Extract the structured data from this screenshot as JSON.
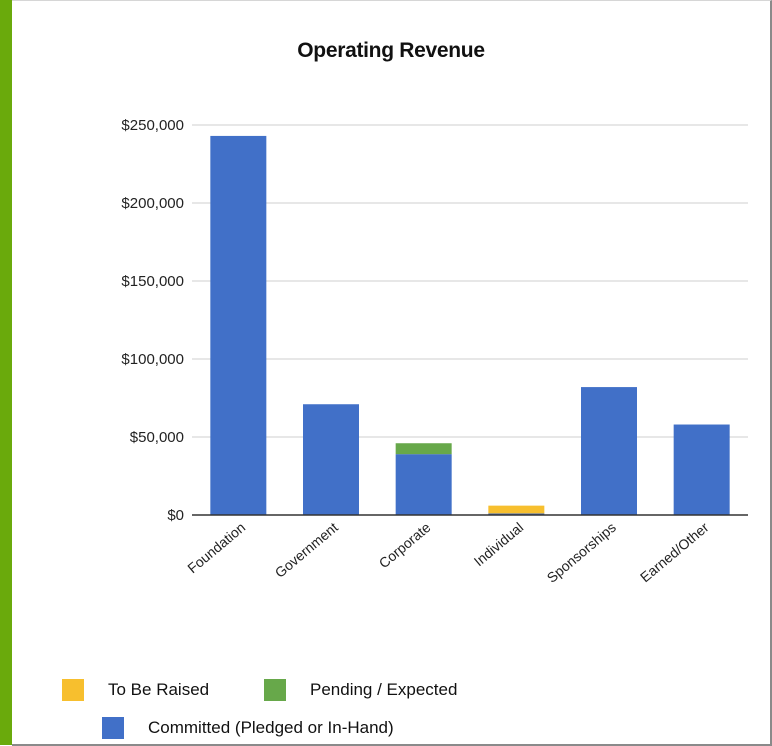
{
  "chart_data": {
    "type": "bar",
    "stacked": true,
    "title": "Operating Revenue",
    "xlabel": "",
    "ylabel": "",
    "ylim": [
      0,
      250000
    ],
    "y_ticks": [
      "$0",
      "$50,000",
      "$100,000",
      "$150,000",
      "$200,000",
      "$250,000"
    ],
    "y_tick_values": [
      0,
      50000,
      100000,
      150000,
      200000,
      250000
    ],
    "grid": true,
    "legend_position": "bottom",
    "categories": [
      "Foundation",
      "Government",
      "Corporate",
      "Individual",
      "Sponsorships",
      "Earned/Other"
    ],
    "series": [
      {
        "name": "Committed (Pledged or In-Hand)",
        "color": "#4170c8",
        "values": [
          243000,
          71000,
          39000,
          1000,
          82000,
          58000
        ]
      },
      {
        "name": "Pending / Expected",
        "color": "#67a84a",
        "values": [
          0,
          0,
          7000,
          0,
          0,
          0
        ]
      },
      {
        "name": "To Be Raised",
        "color": "#f7bf2e",
        "values": [
          0,
          0,
          0,
          5000,
          0,
          0
        ]
      }
    ]
  }
}
